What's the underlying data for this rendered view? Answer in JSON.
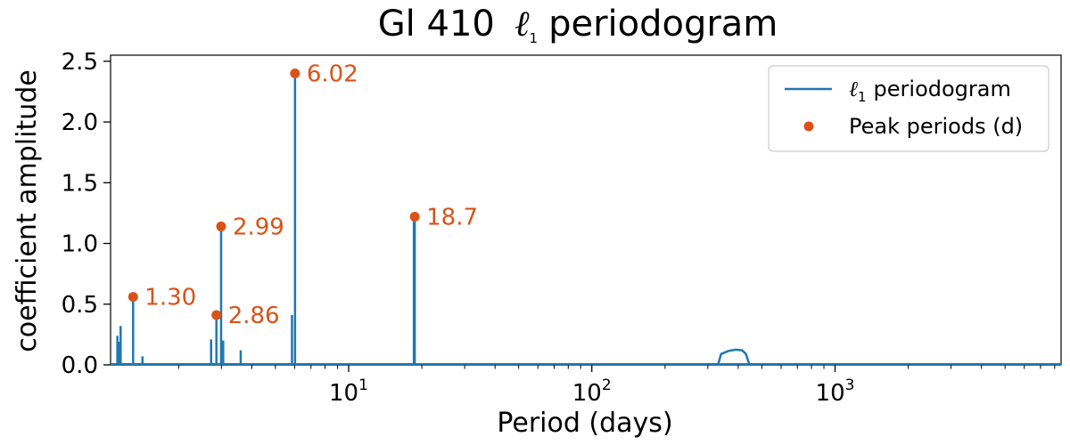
{
  "chart_data": {
    "type": "line",
    "title": "Gl 410  ℓ1 periodogram",
    "title_prefix": "Gl 410",
    "title_symbol": "ℓ",
    "title_subscript": "1",
    "title_suffix": "periodogram",
    "xlabel": "Period (days)",
    "ylabel": "coefficient amplitude",
    "xscale": "log",
    "xlim": [
      1.05,
      8500
    ],
    "ylim": [
      0,
      2.55
    ],
    "grid": false,
    "legend_position": "top-right",
    "xticks": [
      {
        "value": 10,
        "base": "10",
        "exp": "1"
      },
      {
        "value": 100,
        "base": "10",
        "exp": "2"
      },
      {
        "value": 1000,
        "base": "10",
        "exp": "3"
      }
    ],
    "yticks": [
      {
        "value": 0.0,
        "label": "0.0"
      },
      {
        "value": 0.5,
        "label": "0.5"
      },
      {
        "value": 1.0,
        "label": "1.0"
      },
      {
        "value": 1.5,
        "label": "1.5"
      },
      {
        "value": 2.0,
        "label": "2.0"
      },
      {
        "value": 2.5,
        "label": "2.5"
      }
    ],
    "series": [
      {
        "name": "ℓ1 periodogram",
        "name_symbol": "ℓ",
        "name_subscript": "1",
        "name_suffix": "periodogram",
        "color": "#1f77b4",
        "style": "spikes",
        "spikes": [
          {
            "x": 1.12,
            "y": 0.24
          },
          {
            "x": 1.135,
            "y": 0.19
          },
          {
            "x": 1.155,
            "y": 0.32
          },
          {
            "x": 1.3,
            "y": 0.56
          },
          {
            "x": 1.42,
            "y": 0.07
          },
          {
            "x": 2.72,
            "y": 0.21
          },
          {
            "x": 2.86,
            "y": 0.41
          },
          {
            "x": 2.99,
            "y": 1.14
          },
          {
            "x": 3.05,
            "y": 0.2
          },
          {
            "x": 3.6,
            "y": 0.12
          },
          {
            "x": 5.85,
            "y": 0.41
          },
          {
            "x": 6.02,
            "y": 2.4
          },
          {
            "x": 18.55,
            "y": 1.2
          },
          {
            "x": 18.7,
            "y": 1.22
          }
        ],
        "hump": [
          {
            "x": 330,
            "y": 0.0
          },
          {
            "x": 340,
            "y": 0.09
          },
          {
            "x": 365,
            "y": 0.115
          },
          {
            "x": 390,
            "y": 0.125
          },
          {
            "x": 415,
            "y": 0.12
          },
          {
            "x": 430,
            "y": 0.09
          },
          {
            "x": 445,
            "y": 0.0
          }
        ]
      },
      {
        "name": "Peak periods (d)",
        "color": "#d95319",
        "style": "markers",
        "points": [
          {
            "x": 1.3,
            "y": 0.56,
            "label": "1.30"
          },
          {
            "x": 2.86,
            "y": 0.41,
            "label": "2.86"
          },
          {
            "x": 2.99,
            "y": 1.14,
            "label": "2.99"
          },
          {
            "x": 6.02,
            "y": 2.4,
            "label": "6.02"
          },
          {
            "x": 18.7,
            "y": 1.22,
            "label": "18.7"
          }
        ]
      }
    ]
  }
}
